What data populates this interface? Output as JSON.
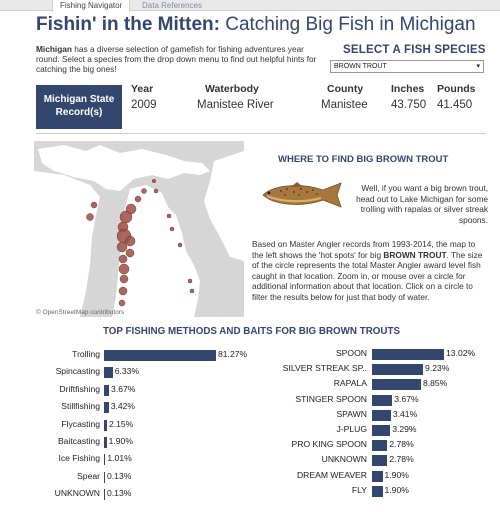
{
  "tabs": [
    {
      "label": "Fishing Navigator",
      "active": true
    },
    {
      "label": "Data References",
      "active": false
    }
  ],
  "title": {
    "bold": "Fishin' in the Mitten:",
    "rest": " Catching Big Fish in Michigan"
  },
  "intro": {
    "bold": "Michigan",
    "text": " has a diverse selection of gamefish for fishing adventures year round. Select a species from the drop down menu to find out helpful hints for catching the big ones!"
  },
  "species_selector": {
    "label": "SELECT A FISH SPECIES",
    "value": "BROWN TROUT",
    "arrow": "▾"
  },
  "record": {
    "label": "Michigan State Record(s)",
    "headers": {
      "year": "Year",
      "waterbody": "Waterbody",
      "county": "County",
      "inches": "Inches",
      "pounds": "Pounds"
    },
    "values": {
      "year": "2009",
      "waterbody": "Manistee River",
      "county": "Manistee",
      "inches": "43.750",
      "pounds": "41.450"
    }
  },
  "map": {
    "credit": "© OpenStreetMap contributors"
  },
  "where": {
    "title": "WHERE TO FIND BIG BROWN TROUT",
    "tip": "Well, if you want a big brown trout, head out to Lake Michigan for some trolling with rapalas or silver streak spoons.",
    "body_pre": "Based on Master Angler records from 1993-2014, the map to the left shows the 'hot spots' for big ",
    "body_bold": "BROWN TROUT",
    "body_post": ". The size of the circle represents the total Master Angler award level fish caught in that location. Zoom in, or mouse over a circle for additional information about that location. Click on a circle to filter the results below for just that body of water."
  },
  "methods_title": "TOP FISHING METHODS AND BAITS FOR BIG BROWN TROUTS",
  "colors": {
    "accent": "#33466e",
    "map_land": "#ffffff",
    "map_water": "#d6d6d6",
    "bubble": "#9b4d45"
  },
  "chart_data": [
    {
      "type": "bar",
      "title": "",
      "categories": [
        "Trolling",
        "Spincasting",
        "Driftfishing",
        "Stillfishing",
        "Flycasting",
        "Baitcasting",
        "Ice Fishing",
        "Spear",
        "UNKNOWN"
      ],
      "values": [
        81.27,
        6.33,
        3.67,
        3.42,
        2.15,
        1.9,
        1.01,
        0.13,
        0.13
      ],
      "labels": [
        "81.27%",
        "6.33%",
        "3.67%",
        "3.42%",
        "2.15%",
        "1.90%",
        "1.01%",
        "0.13%",
        "0.13%"
      ]
    },
    {
      "type": "bar",
      "title": "",
      "categories": [
        "SPOON",
        "SILVER STREAK SP..",
        "RAPALA",
        "STINGER SPOON",
        "SPAWN",
        "J-PLUG",
        "PRO KING SPOON",
        "UNKNOWN",
        "DREAM WEAVER",
        "FLY"
      ],
      "values": [
        13.02,
        9.23,
        8.85,
        3.67,
        3.41,
        3.29,
        2.78,
        2.78,
        1.9,
        1.9
      ],
      "labels": [
        "13.02%",
        "9.23%",
        "8.85%",
        "3.67%",
        "3.41%",
        "3.29%",
        "2.78%",
        "2.78%",
        "1.90%",
        "1.90%"
      ]
    }
  ]
}
